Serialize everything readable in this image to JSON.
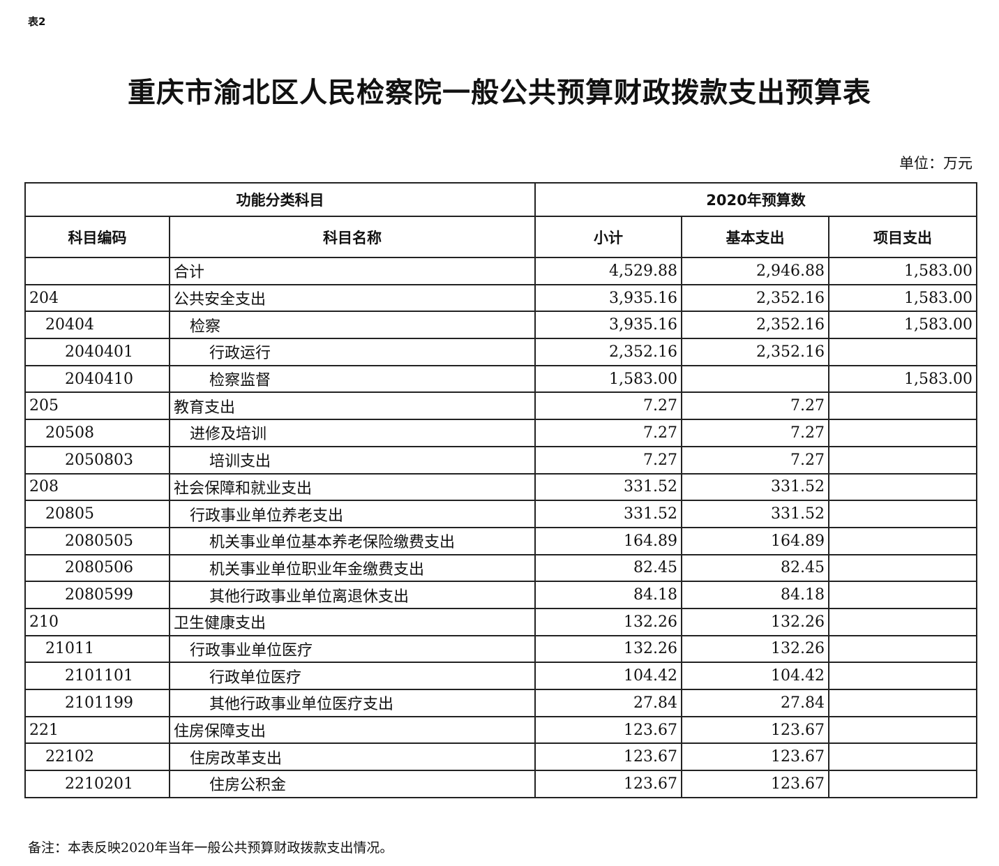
{
  "table_label": "表2",
  "title": "重庆市渝北区人民检察院一般公共预算财政拨款支出预算表",
  "unit": "单位：万元",
  "headers": {
    "group_left": "功能分类科目",
    "group_right": "2020年预算数",
    "code": "科目编码",
    "name": "科目名称",
    "subtotal": "小计",
    "basic": "基本支出",
    "project": "项目支出"
  },
  "rows": [
    {
      "code": "",
      "name": "合计",
      "level": 0,
      "subtotal": "4,529.88",
      "basic": "2,946.88",
      "project": "1,583.00"
    },
    {
      "code": "204",
      "name": "公共安全支出",
      "level": 0,
      "subtotal": "3,935.16",
      "basic": "2,352.16",
      "project": "1,583.00"
    },
    {
      "code": "20404",
      "name": "检察",
      "level": 1,
      "subtotal": "3,935.16",
      "basic": "2,352.16",
      "project": "1,583.00"
    },
    {
      "code": "2040401",
      "name": "行政运行",
      "level": 2,
      "subtotal": "2,352.16",
      "basic": "2,352.16",
      "project": ""
    },
    {
      "code": "2040410",
      "name": "检察监督",
      "level": 2,
      "subtotal": "1,583.00",
      "basic": "",
      "project": "1,583.00"
    },
    {
      "code": "205",
      "name": "教育支出",
      "level": 0,
      "subtotal": "7.27",
      "basic": "7.27",
      "project": ""
    },
    {
      "code": "20508",
      "name": "进修及培训",
      "level": 1,
      "subtotal": "7.27",
      "basic": "7.27",
      "project": ""
    },
    {
      "code": "2050803",
      "name": "培训支出",
      "level": 2,
      "subtotal": "7.27",
      "basic": "7.27",
      "project": ""
    },
    {
      "code": "208",
      "name": "社会保障和就业支出",
      "level": 0,
      "subtotal": "331.52",
      "basic": "331.52",
      "project": ""
    },
    {
      "code": "20805",
      "name": "行政事业单位养老支出",
      "level": 1,
      "subtotal": "331.52",
      "basic": "331.52",
      "project": ""
    },
    {
      "code": "2080505",
      "name": "机关事业单位基本养老保险缴费支出",
      "level": 2,
      "subtotal": "164.89",
      "basic": "164.89",
      "project": ""
    },
    {
      "code": "2080506",
      "name": "机关事业单位职业年金缴费支出",
      "level": 2,
      "subtotal": "82.45",
      "basic": "82.45",
      "project": ""
    },
    {
      "code": "2080599",
      "name": "其他行政事业单位离退休支出",
      "level": 2,
      "subtotal": "84.18",
      "basic": "84.18",
      "project": ""
    },
    {
      "code": "210",
      "name": "卫生健康支出",
      "level": 0,
      "subtotal": "132.26",
      "basic": "132.26",
      "project": ""
    },
    {
      "code": "21011",
      "name": "行政事业单位医疗",
      "level": 1,
      "subtotal": "132.26",
      "basic": "132.26",
      "project": ""
    },
    {
      "code": "2101101",
      "name": "行政单位医疗",
      "level": 2,
      "subtotal": "104.42",
      "basic": "104.42",
      "project": ""
    },
    {
      "code": "2101199",
      "name": "其他行政事业单位医疗支出",
      "level": 2,
      "subtotal": "27.84",
      "basic": "27.84",
      "project": ""
    },
    {
      "code": "221",
      "name": "住房保障支出",
      "level": 0,
      "subtotal": "123.67",
      "basic": "123.67",
      "project": ""
    },
    {
      "code": "22102",
      "name": "住房改革支出",
      "level": 1,
      "subtotal": "123.67",
      "basic": "123.67",
      "project": ""
    },
    {
      "code": "2210201",
      "name": "住房公积金",
      "level": 2,
      "subtotal": "123.67",
      "basic": "123.67",
      "project": ""
    }
  ],
  "note": "备注：本表反映2020年当年一般公共预算财政拨款支出情况。"
}
